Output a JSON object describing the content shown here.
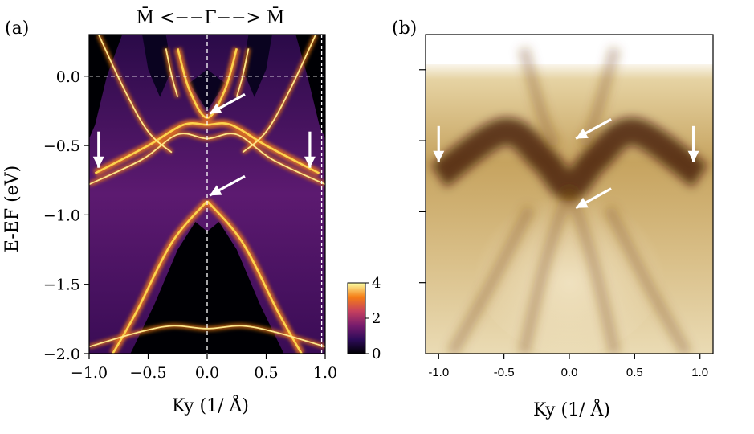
{
  "chart_data": [
    {
      "panel": "(a)",
      "type": "heatmap",
      "title": "M̄ <−−Γ̄−−> M̄",
      "xlabel": "Ky (1/ Å)",
      "ylabel": "E-EF (eV)",
      "xlim": [
        -1.0,
        1.0
      ],
      "ylim": [
        -2.0,
        0.3
      ],
      "xticks": [
        -1.0,
        -0.5,
        0.0,
        0.5,
        1.0
      ],
      "xtick_labels": [
        "−1.0",
        "−0.5",
        "0.0",
        "0.5",
        "1.0"
      ],
      "yticks": [
        0.0,
        -0.5,
        -1.0,
        -1.5,
        -2.0
      ],
      "ytick_labels": [
        "0.0",
        "−0.5",
        "−1.0",
        "−1.5",
        "−2.0"
      ],
      "reference_lines": {
        "fermi_level_E": 0.0,
        "gamma_Ky": 0.0,
        "mbar_Ky": 0.97
      },
      "colorbar": {
        "min": 0,
        "max": 4,
        "ticks": [
          0,
          2,
          4
        ],
        "colormap": "inferno"
      },
      "bands": [
        {
          "name": "deep parabola left",
          "points": [
            [
              0.0,
              -0.9
            ],
            [
              -0.3,
              -1.2
            ],
            [
              -0.6,
              -1.7
            ],
            [
              -0.8,
              -2.0
            ]
          ]
        },
        {
          "name": "deep parabola right",
          "points": [
            [
              0.0,
              -0.9
            ],
            [
              0.3,
              -1.2
            ],
            [
              0.6,
              -1.7
            ],
            [
              0.8,
              -2.0
            ]
          ]
        },
        {
          "name": "upper M-shaped band",
          "points": [
            [
              -0.95,
              -0.7
            ],
            [
              -0.5,
              -0.5
            ],
            [
              -0.2,
              -0.35
            ],
            [
              0.0,
              -0.35
            ],
            [
              0.2,
              -0.35
            ],
            [
              0.5,
              -0.5
            ],
            [
              0.95,
              -0.7
            ]
          ]
        },
        {
          "name": "surface state near EF",
          "points": [
            [
              -0.25,
              0.2
            ],
            [
              -0.15,
              -0.1
            ],
            [
              0.0,
              -0.3
            ],
            [
              0.15,
              -0.1
            ],
            [
              0.25,
              0.2
            ]
          ]
        }
      ],
      "arrows": [
        {
          "tip": [
            0.02,
            -0.27
          ],
          "direction": "down-left"
        },
        {
          "tip": [
            0.02,
            -0.86
          ],
          "direction": "down-left"
        },
        {
          "tip": [
            -0.92,
            -0.66
          ],
          "direction": "down"
        },
        {
          "tip": [
            0.87,
            -0.66
          ],
          "direction": "down"
        }
      ]
    },
    {
      "panel": "(b)",
      "type": "heatmap",
      "xlabel": "Ky (1/ Å)",
      "xlim": [
        -1.1,
        1.1
      ],
      "xticks": [
        -1.0,
        -0.5,
        0.0,
        0.5,
        1.0
      ],
      "xtick_labels": [
        "-1.0",
        "-0.5",
        "0.0",
        "0.5",
        "1.0"
      ],
      "colormap": "sepia (ARPES intensity)",
      "dark_band": {
        "name": "M-shaped intense band",
        "points": [
          [
            -1.0,
            -0.72
          ],
          [
            -0.5,
            -0.4
          ],
          [
            -0.2,
            -0.6
          ],
          [
            0.0,
            -0.8
          ],
          [
            0.2,
            -0.6
          ],
          [
            0.5,
            -0.4
          ],
          [
            1.0,
            -0.72
          ]
        ]
      },
      "arrows": [
        {
          "tip": [
            0.05,
            -0.45
          ],
          "direction": "down-left"
        },
        {
          "tip": [
            0.05,
            -0.95
          ],
          "direction": "down-left"
        },
        {
          "tip": [
            -1.0,
            -0.62
          ],
          "direction": "down"
        },
        {
          "tip": [
            0.95,
            -0.62
          ],
          "direction": "down"
        }
      ]
    }
  ],
  "labels": {
    "panel_a": "(a)",
    "panel_b": "(b)",
    "title_a": "M̄ <−−Γ̄−−> M̄",
    "xlabel": "Ky (1/ Å)",
    "ylabel": "E-EF (eV)"
  }
}
